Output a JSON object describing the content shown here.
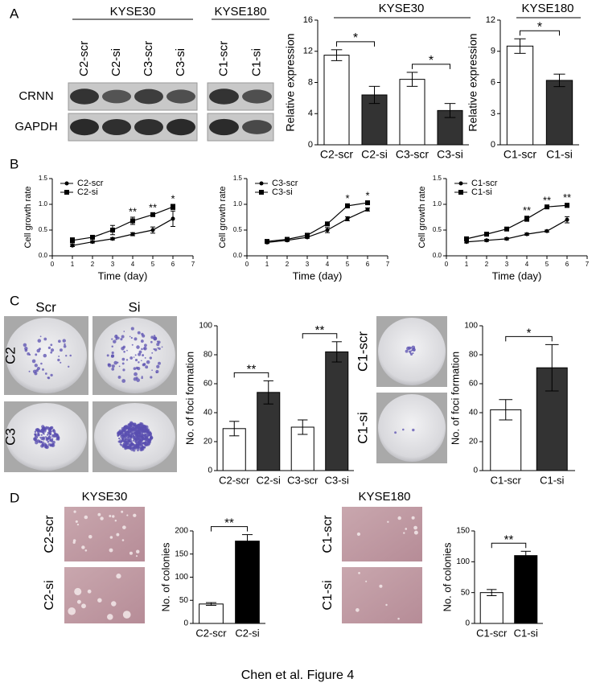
{
  "figure": {
    "panels": [
      "A",
      "B",
      "C",
      "D"
    ],
    "blot": {
      "groups": [
        {
          "name": "KYSE30",
          "lanes": [
            "C2-scr",
            "C2-si",
            "C3-scr",
            "C3-si"
          ]
        },
        {
          "name": "KYSE180",
          "lanes": [
            "C1-scr",
            "C1-si"
          ]
        }
      ],
      "rows": [
        "CRNN",
        "GAPDH"
      ]
    },
    "foci": {
      "columns": [
        "Scr",
        "Si"
      ],
      "rows": [
        "C2",
        "C3"
      ],
      "side_rows": [
        "C1-scr",
        "C1-si"
      ]
    },
    "colonies": [
      {
        "title": "KYSE30",
        "rows": [
          "C2-scr",
          "C2-si"
        ]
      },
      {
        "title": "KYSE180",
        "rows": [
          "C1-scr",
          "C1-si"
        ]
      }
    ],
    "caption": "Chen et al. Figure 4"
  },
  "chart_data": [
    {
      "type": "bar",
      "title": "KYSE30",
      "ylabel": "Relative expression",
      "categories": [
        "C2-scr",
        "C2-si",
        "C3-scr",
        "C3-si"
      ],
      "values": [
        11.5,
        6.4,
        8.4,
        4.4
      ],
      "errors": [
        0.7,
        1.1,
        0.9,
        0.9
      ],
      "colors": [
        "#ffffff",
        "#333333",
        "#ffffff",
        "#333333"
      ],
      "ylim": [
        0,
        16
      ],
      "yticks": [
        0,
        4,
        8,
        12,
        16
      ],
      "significance": [
        {
          "label": "*",
          "from": 0,
          "to": 1
        },
        {
          "label": "*",
          "from": 2,
          "to": 3
        }
      ]
    },
    {
      "type": "bar",
      "title": "KYSE180",
      "ylabel": "Relative expression",
      "categories": [
        "C1-scr",
        "C1-si"
      ],
      "values": [
        9.5,
        6.2
      ],
      "errors": [
        0.7,
        0.6
      ],
      "colors": [
        "#ffffff",
        "#333333"
      ],
      "ylim": [
        0,
        12
      ],
      "yticks": [
        0,
        3,
        6,
        9,
        12
      ],
      "significance": [
        {
          "label": "*",
          "from": 0,
          "to": 1
        }
      ]
    },
    {
      "type": "line",
      "xlabel": "Time (day)",
      "ylabel": "Cell growth rate",
      "x": [
        1,
        2,
        3,
        4,
        5,
        6
      ],
      "xlim": [
        0,
        7
      ],
      "xticks": [
        0,
        1,
        2,
        3,
        4,
        5,
        6,
        7
      ],
      "ylim": [
        0,
        1.5
      ],
      "yticks": [
        {
          "value": 0,
          "label": "0.0"
        },
        0.5,
        {
          "value": 1,
          "label": "1.0"
        },
        1.5
      ],
      "series": [
        {
          "name": "C2-scr",
          "color": "#000000",
          "marker": "circle",
          "values": [
            0.2,
            0.27,
            0.33,
            0.42,
            0.5,
            0.72
          ],
          "errors": [
            0.02,
            0.02,
            0.02,
            0.03,
            0.06,
            0.15
          ]
        },
        {
          "name": "C2-si",
          "color": "#000000",
          "marker": "square",
          "values": [
            0.3,
            0.36,
            0.5,
            0.68,
            0.8,
            0.95
          ],
          "errors": [
            0.05,
            0.03,
            0.09,
            0.07,
            0.03,
            0.05
          ]
        }
      ],
      "significance": [
        {
          "label": "**",
          "x": 4
        },
        {
          "label": "**",
          "x": 5
        },
        {
          "label": "*",
          "x": 6
        }
      ]
    },
    {
      "type": "line",
      "xlabel": "Time (day)",
      "ylabel": "Cell growth rate",
      "x": [
        1,
        2,
        3,
        4,
        5,
        6
      ],
      "xlim": [
        0,
        7
      ],
      "xticks": [
        0,
        1,
        2,
        3,
        4,
        5,
        6,
        7
      ],
      "ylim": [
        0,
        1.5
      ],
      "yticks": [
        {
          "value": 0,
          "label": "0.0"
        },
        0.5,
        {
          "value": 1,
          "label": "1.0"
        },
        1.5
      ],
      "series": [
        {
          "name": "C3-scr",
          "color": "#000000",
          "marker": "circle",
          "values": [
            0.26,
            0.3,
            0.36,
            0.5,
            0.72,
            0.9
          ],
          "errors": [
            0.02,
            0.02,
            0.02,
            0.05,
            0.04,
            0.03
          ]
        },
        {
          "name": "C3-si",
          "color": "#000000",
          "marker": "square",
          "values": [
            0.28,
            0.32,
            0.4,
            0.62,
            0.97,
            1.03
          ],
          "errors": [
            0.02,
            0.02,
            0.03,
            0.03,
            0.04,
            0.03
          ]
        }
      ],
      "significance": [
        {
          "label": "*",
          "x": 5
        },
        {
          "label": "*",
          "x": 6
        }
      ]
    },
    {
      "type": "line",
      "xlabel": "Time (day)",
      "ylabel": "Cell growth rate",
      "x": [
        1,
        2,
        3,
        4,
        5,
        6
      ],
      "xlim": [
        0,
        7
      ],
      "xticks": [
        0,
        1,
        2,
        3,
        4,
        5,
        6,
        7
      ],
      "ylim": [
        0,
        1.5
      ],
      "yticks": [
        {
          "value": 0,
          "label": "0.0"
        },
        0.5,
        {
          "value": 1,
          "label": "1.0"
        },
        1.5
      ],
      "series": [
        {
          "name": "C1-scr",
          "color": "#000000",
          "marker": "circle",
          "values": [
            0.27,
            0.3,
            0.33,
            0.42,
            0.48,
            0.7
          ],
          "errors": [
            0.02,
            0.02,
            0.02,
            0.02,
            0.02,
            0.06
          ]
        },
        {
          "name": "C1-si",
          "color": "#000000",
          "marker": "square",
          "values": [
            0.33,
            0.42,
            0.52,
            0.72,
            0.95,
            0.98
          ],
          "errors": [
            0.02,
            0.02,
            0.02,
            0.05,
            0.02,
            0.04
          ]
        }
      ],
      "significance": [
        {
          "label": "**",
          "x": 4
        },
        {
          "label": "**",
          "x": 5
        },
        {
          "label": "**",
          "x": 6
        }
      ]
    },
    {
      "type": "bar",
      "ylabel": "No. of foci formation",
      "categories": [
        "C2-scr",
        "C2-si",
        "C3-scr",
        "C3-si"
      ],
      "values": [
        29,
        54,
        30,
        82
      ],
      "errors": [
        5,
        8,
        5,
        7
      ],
      "colors": [
        "#ffffff",
        "#333333",
        "#ffffff",
        "#333333"
      ],
      "ylim": [
        0,
        100
      ],
      "yticks": [
        0,
        20,
        40,
        60,
        80,
        100
      ],
      "significance": [
        {
          "label": "**",
          "from": 0,
          "to": 1
        },
        {
          "label": "**",
          "from": 2,
          "to": 3
        }
      ]
    },
    {
      "type": "bar",
      "ylabel": "No. of foci formation",
      "categories": [
        "C1-scr",
        "C1-si"
      ],
      "values": [
        42,
        71
      ],
      "errors": [
        7,
        16
      ],
      "colors": [
        "#ffffff",
        "#333333"
      ],
      "ylim": [
        0,
        100
      ],
      "yticks": [
        0,
        20,
        40,
        60,
        80,
        100
      ],
      "significance": [
        {
          "label": "*",
          "from": 0,
          "to": 1
        }
      ]
    },
    {
      "type": "bar",
      "ylabel": "No. of colonies",
      "categories": [
        "C2-scr",
        "C2-si"
      ],
      "values": [
        42,
        178
      ],
      "errors": [
        3,
        14
      ],
      "colors": [
        "#ffffff",
        "#000000"
      ],
      "ylim": [
        0,
        200
      ],
      "yticks": [
        0,
        50,
        100,
        150,
        200
      ],
      "significance": [
        {
          "label": "**",
          "from": 0,
          "to": 1
        }
      ]
    },
    {
      "type": "bar",
      "ylabel": "No. of colonies",
      "categories": [
        "C1-scr",
        "C1-si"
      ],
      "values": [
        50,
        110
      ],
      "errors": [
        5,
        7
      ],
      "colors": [
        "#ffffff",
        "#000000"
      ],
      "ylim": [
        0,
        150
      ],
      "yticks": [
        0,
        50,
        100,
        150
      ],
      "significance": [
        {
          "label": "**",
          "from": 0,
          "to": 1
        }
      ]
    }
  ]
}
